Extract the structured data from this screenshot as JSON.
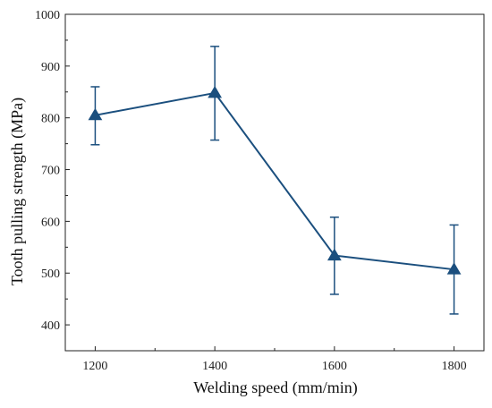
{
  "chart_data": {
    "type": "line",
    "xlabel": "Welding speed (mm/min)",
    "ylabel": "Tooth pulling strength (MPa)",
    "xlim": [
      1150,
      1850
    ],
    "ylim": [
      350,
      1000
    ],
    "x_ticks": [
      1200,
      1400,
      1600,
      1800
    ],
    "y_ticks": [
      400,
      500,
      600,
      700,
      800,
      900,
      1000
    ],
    "series": [
      {
        "x": [
          1200,
          1400,
          1600,
          1800
        ],
        "values": [
          805,
          848,
          534,
          507
        ],
        "error_low": [
          748,
          757,
          459,
          421
        ],
        "error_high": [
          860,
          938,
          608,
          593
        ],
        "marker": "triangle-up",
        "color": "#1b4f7e"
      }
    ],
    "grid": false,
    "legend": "none"
  }
}
